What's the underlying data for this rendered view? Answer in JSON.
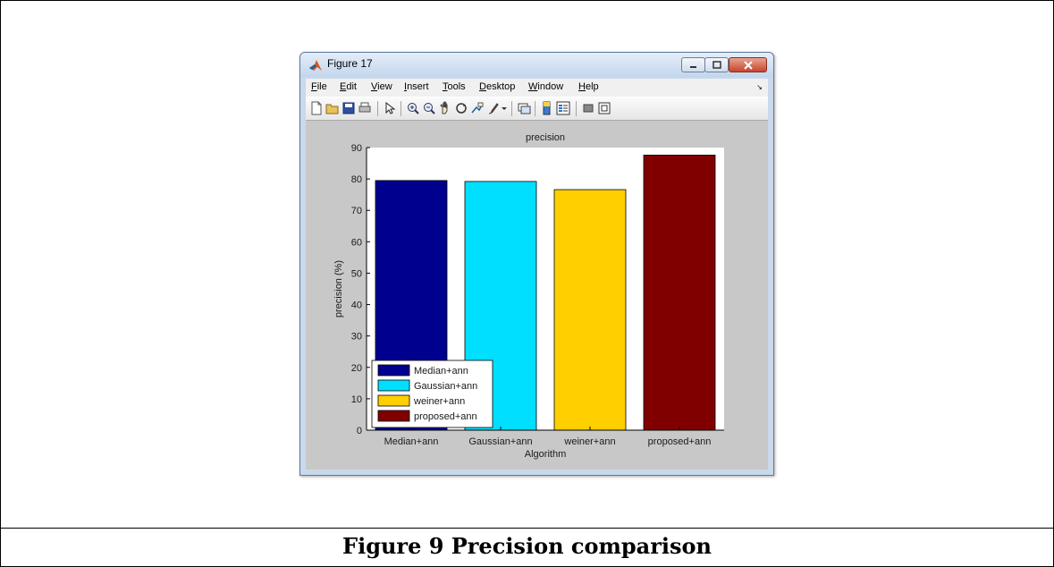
{
  "window": {
    "title": "Figure 17",
    "menu": [
      "File",
      "Edit",
      "View",
      "Insert",
      "Tools",
      "Desktop",
      "Window",
      "Help"
    ],
    "menu_arrow": "↘",
    "toolbar_icons": [
      "new-figure-icon",
      "open-file-icon",
      "save-icon",
      "print-icon",
      "pointer-icon",
      "zoom-in-icon",
      "zoom-out-icon",
      "pan-icon",
      "rotate-3d-icon",
      "data-cursor-icon",
      "brush-icon",
      "brush-dropdown-icon",
      "link-plot-icon",
      "colorbar-icon",
      "legend-icon",
      "hide-plot-tools-icon",
      "show-plot-tools-icon"
    ]
  },
  "chart_data": {
    "type": "bar",
    "title": "precision",
    "xlabel": "Algorithm",
    "ylabel": "precision (%)",
    "categories": [
      "Median+ann",
      "Gaussian+ann",
      "weiner+ann",
      "proposed+ann"
    ],
    "values": [
      79.5,
      79.2,
      76.6,
      87.6
    ],
    "colors": [
      "#00008f",
      "#00dfff",
      "#ffcf00",
      "#800000"
    ],
    "ylim": [
      0,
      90
    ],
    "yticks": [
      "0",
      "10",
      "20",
      "30",
      "40",
      "50",
      "60",
      "70",
      "80",
      "90"
    ],
    "legend": {
      "placement": "bottom-left",
      "entries": [
        "Median+ann",
        "Gaussian+ann",
        "weiner+ann",
        "proposed+ann"
      ]
    },
    "grid": false
  },
  "caption": "Figure 9 Precision comparison"
}
